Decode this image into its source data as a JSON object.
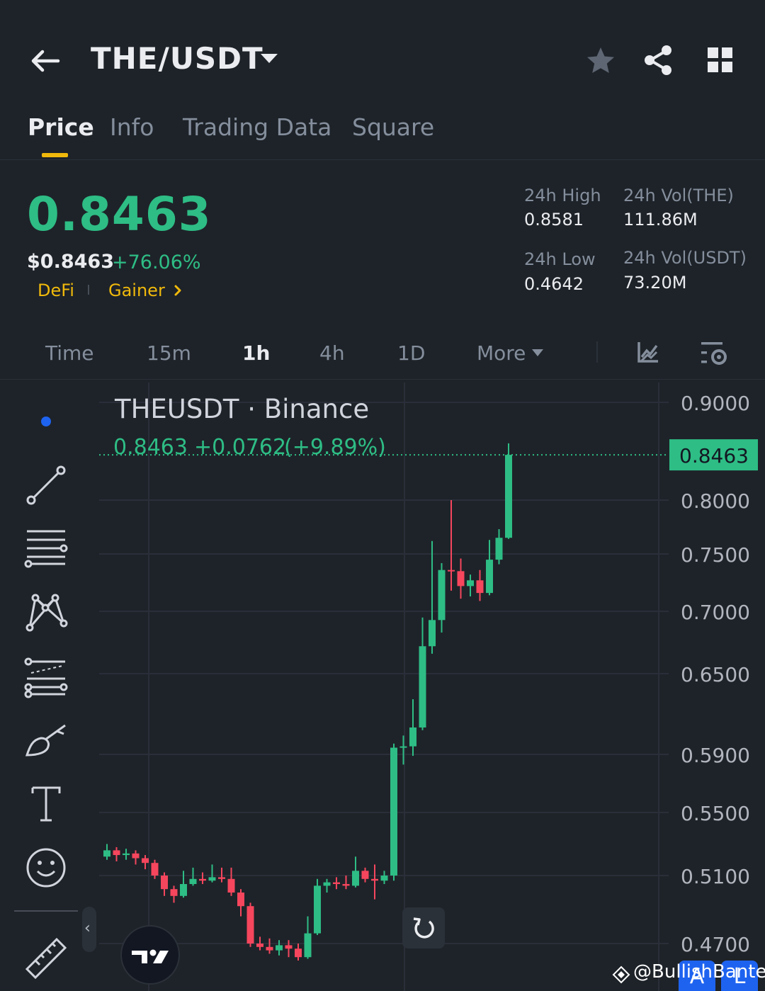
{
  "header": {
    "pair": "THE/USDT",
    "icons": [
      "back-arrow-icon",
      "caret-down-icon",
      "star-icon",
      "share-icon",
      "grid-icon"
    ]
  },
  "tabs": [
    "Price",
    "Info",
    "Trading Data",
    "Square"
  ],
  "active_tab": "Price",
  "ticker": {
    "last_price": "0.8463",
    "usd_price": "$0.8463",
    "change_pct": "+76.06%",
    "tags": [
      "DeFi",
      "Gainer"
    ],
    "high_label": "24h High",
    "high_value": "0.8581",
    "low_label": "24h Low",
    "low_value": "0.4642",
    "vol_base_label": "24h Vol(THE)",
    "vol_base_value": "111.86M",
    "vol_quote_label": "24h Vol(USDT)",
    "vol_quote_value": "73.20M"
  },
  "intervals": [
    "Time",
    "15m",
    "1h",
    "4h",
    "1D",
    "More"
  ],
  "active_interval": "1h",
  "colors": {
    "up": "#2ebd85",
    "down": "#f6465d",
    "accent": "#f0b90b",
    "background": "#1e2329",
    "blue": "#1e63f0"
  },
  "chart_data": {
    "type": "candlestick",
    "title": "THEUSDT · Binance",
    "last_line": {
      "price": "0.8463",
      "change": "+0.0762",
      "change_pct": "(+9.89%)"
    },
    "price_label": "0.8463",
    "y_ticks": [
      "0.9000",
      "0.8000",
      "0.7500",
      "0.7000",
      "0.6500",
      "0.5900",
      "0.5500",
      "0.5100",
      "0.4700"
    ],
    "y_tick_values": [
      0.9,
      0.8,
      0.75,
      0.7,
      0.65,
      0.59,
      0.55,
      0.51,
      0.47
    ],
    "ylim": [
      0.455,
      0.915
    ],
    "last_price": 0.8463,
    "candles": [
      [
        0.522,
        0.526,
        0.53,
        0.52
      ],
      [
        0.526,
        0.523,
        0.528,
        0.519
      ],
      [
        0.523,
        0.524,
        0.527,
        0.52
      ],
      [
        0.524,
        0.521,
        0.526,
        0.517
      ],
      [
        0.521,
        0.518,
        0.523,
        0.514
      ],
      [
        0.518,
        0.51,
        0.52,
        0.508
      ],
      [
        0.51,
        0.502,
        0.512,
        0.498
      ],
      [
        0.502,
        0.498,
        0.504,
        0.494
      ],
      [
        0.498,
        0.505,
        0.513,
        0.497
      ],
      [
        0.505,
        0.508,
        0.515,
        0.504
      ],
      [
        0.508,
        0.507,
        0.512,
        0.505
      ],
      [
        0.507,
        0.509,
        0.517,
        0.506
      ],
      [
        0.509,
        0.508,
        0.515,
        0.506
      ],
      [
        0.508,
        0.5,
        0.515,
        0.498
      ],
      [
        0.5,
        0.492,
        0.502,
        0.486
      ],
      [
        0.492,
        0.47,
        0.494,
        0.468
      ],
      [
        0.47,
        0.468,
        0.474,
        0.466
      ],
      [
        0.468,
        0.466,
        0.473,
        0.464
      ],
      [
        0.466,
        0.469,
        0.472,
        0.463
      ],
      [
        0.469,
        0.467,
        0.472,
        0.462
      ],
      [
        0.467,
        0.462,
        0.47,
        0.46
      ],
      [
        0.462,
        0.476,
        0.486,
        0.461
      ],
      [
        0.476,
        0.504,
        0.508,
        0.475
      ],
      [
        0.504,
        0.506,
        0.508,
        0.5
      ],
      [
        0.506,
        0.505,
        0.509,
        0.502
      ],
      [
        0.505,
        0.504,
        0.51,
        0.502
      ],
      [
        0.504,
        0.513,
        0.522,
        0.503
      ],
      [
        0.513,
        0.508,
        0.515,
        0.506
      ],
      [
        0.508,
        0.507,
        0.517,
        0.496
      ],
      [
        0.507,
        0.51,
        0.513,
        0.505
      ],
      [
        0.51,
        0.595,
        0.598,
        0.507
      ],
      [
        0.595,
        0.596,
        0.604,
        0.583
      ],
      [
        0.596,
        0.61,
        0.631,
        0.589
      ],
      [
        0.61,
        0.672,
        0.695,
        0.608
      ],
      [
        0.672,
        0.693,
        0.762,
        0.666
      ],
      [
        0.693,
        0.736,
        0.742,
        0.683
      ],
      [
        0.736,
        0.735,
        0.8,
        0.718
      ],
      [
        0.735,
        0.722,
        0.746,
        0.711
      ],
      [
        0.722,
        0.727,
        0.732,
        0.713
      ],
      [
        0.727,
        0.716,
        0.736,
        0.709
      ],
      [
        0.716,
        0.745,
        0.763,
        0.714
      ],
      [
        0.745,
        0.765,
        0.773,
        0.741
      ],
      [
        0.765,
        0.8463,
        0.8581,
        0.764
      ]
    ]
  },
  "watermark": "@BullishBanter",
  "badges": [
    "A",
    "L"
  ]
}
